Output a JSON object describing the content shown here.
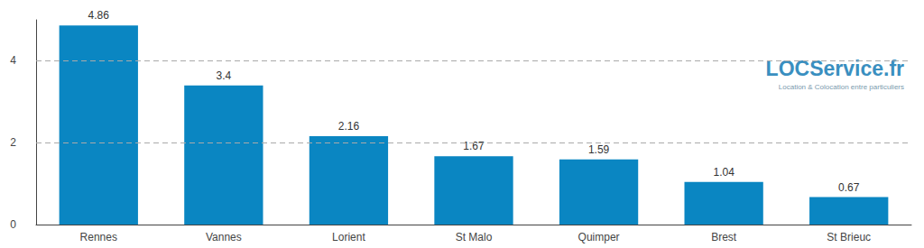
{
  "chart_data": {
    "type": "bar",
    "categories": [
      "Rennes",
      "Vannes",
      "Lorient",
      "St Malo",
      "Quimper",
      "Brest",
      "St Brieuc"
    ],
    "values": [
      4.86,
      3.4,
      2.16,
      1.67,
      1.59,
      1.04,
      0.67
    ],
    "color": "#0a86c2",
    "ylim": [
      0,
      5
    ],
    "yticks": [
      0,
      2,
      4
    ],
    "grid": true,
    "data_labels": true,
    "annotations": [
      "LOCService.fr",
      "Location & Colocation entre particuliers"
    ]
  }
}
